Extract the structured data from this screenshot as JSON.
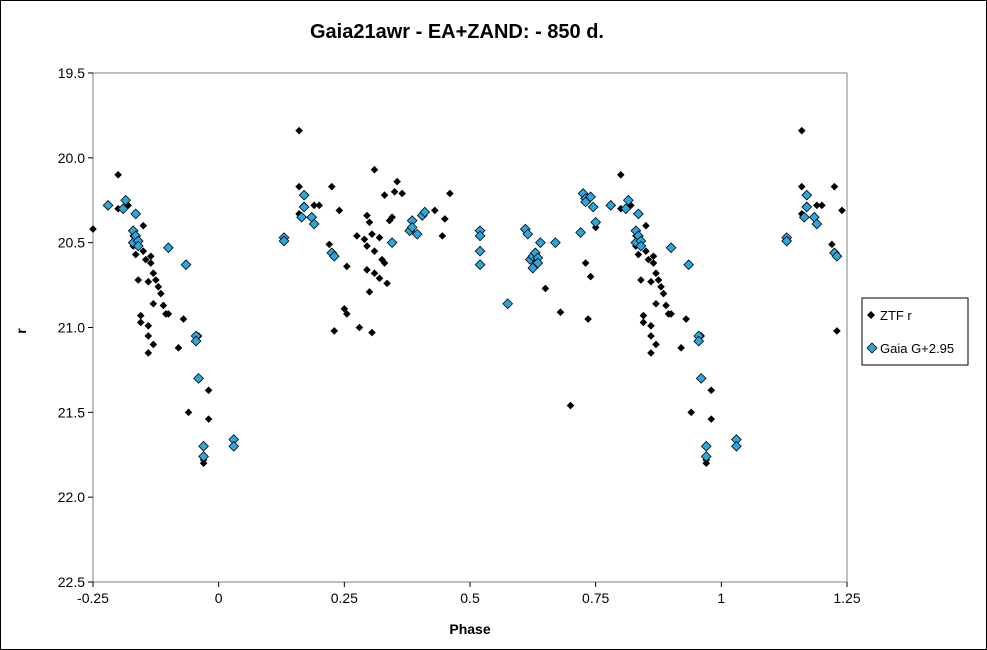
{
  "chart_data": {
    "type": "scatter",
    "title": "Gaia21awr - EA+ZAND:  - 850 d.",
    "xlabel": "Phase",
    "ylabel": "r",
    "xlim": [
      -0.25,
      1.25
    ],
    "ylim": [
      19.5,
      22.5
    ],
    "y_inverted": true,
    "grid": false,
    "legend_position": "right",
    "x_ticks": [
      "-0.25",
      "0",
      "0.25",
      "0.5",
      "0.75",
      "1",
      "1.25"
    ],
    "y_ticks": [
      "19.5",
      "20.0",
      "20.5",
      "21.0",
      "21.5",
      "22.0",
      "22.5"
    ],
    "series": [
      {
        "name": "ZTF r",
        "marker": "diamond",
        "color": "#000000",
        "points": [
          [
            -0.25,
            20.42
          ],
          [
            -0.2,
            20.1
          ],
          [
            -0.2,
            20.3
          ],
          [
            -0.18,
            20.28
          ],
          [
            -0.17,
            20.46
          ],
          [
            -0.17,
            20.52
          ],
          [
            -0.165,
            20.57
          ],
          [
            -0.16,
            20.72
          ],
          [
            -0.155,
            20.93
          ],
          [
            -0.155,
            20.97
          ],
          [
            -0.15,
            20.4
          ],
          [
            -0.15,
            20.55
          ],
          [
            -0.145,
            20.6
          ],
          [
            -0.14,
            20.73
          ],
          [
            -0.14,
            20.99
          ],
          [
            -0.14,
            21.05
          ],
          [
            -0.14,
            21.15
          ],
          [
            -0.135,
            20.58
          ],
          [
            -0.135,
            20.62
          ],
          [
            -0.13,
            20.68
          ],
          [
            -0.13,
            20.86
          ],
          [
            -0.13,
            21.1
          ],
          [
            -0.125,
            20.72
          ],
          [
            -0.12,
            20.76
          ],
          [
            -0.115,
            20.8
          ],
          [
            -0.11,
            20.87
          ],
          [
            -0.105,
            20.92
          ],
          [
            -0.1,
            20.92
          ],
          [
            -0.08,
            21.12
          ],
          [
            -0.07,
            20.95
          ],
          [
            -0.06,
            21.5
          ],
          [
            -0.04,
            21.05
          ],
          [
            -0.03,
            21.78
          ],
          [
            -0.03,
            21.8
          ],
          [
            -0.02,
            21.37
          ],
          [
            -0.02,
            21.54
          ],
          [
            0.16,
            19.84
          ],
          [
            0.16,
            20.17
          ],
          [
            0.16,
            20.33
          ],
          [
            0.17,
            20.28
          ],
          [
            0.19,
            20.28
          ],
          [
            0.2,
            20.28
          ],
          [
            0.22,
            20.51
          ],
          [
            0.225,
            20.17
          ],
          [
            0.23,
            21.02
          ],
          [
            0.24,
            20.31
          ],
          [
            0.25,
            20.89
          ],
          [
            0.255,
            20.92
          ],
          [
            0.255,
            20.64
          ],
          [
            0.275,
            20.46
          ],
          [
            0.28,
            21.0
          ],
          [
            0.29,
            20.48
          ],
          [
            0.295,
            20.34
          ],
          [
            0.295,
            20.52
          ],
          [
            0.295,
            20.66
          ],
          [
            0.3,
            20.38
          ],
          [
            0.3,
            20.79
          ],
          [
            0.305,
            20.45
          ],
          [
            0.305,
            21.03
          ],
          [
            0.31,
            20.07
          ],
          [
            0.31,
            20.55
          ],
          [
            0.31,
            20.68
          ],
          [
            0.32,
            20.47
          ],
          [
            0.32,
            20.71
          ],
          [
            0.325,
            20.6
          ],
          [
            0.33,
            20.22
          ],
          [
            0.33,
            20.62
          ],
          [
            0.335,
            20.74
          ],
          [
            0.34,
            20.37
          ],
          [
            0.345,
            20.35
          ],
          [
            0.35,
            20.2
          ],
          [
            0.355,
            20.14
          ],
          [
            0.365,
            20.21
          ],
          [
            0.43,
            20.31
          ],
          [
            0.445,
            20.46
          ],
          [
            0.45,
            20.36
          ],
          [
            0.46,
            20.21
          ],
          [
            0.65,
            20.77
          ],
          [
            0.68,
            20.91
          ],
          [
            0.7,
            21.46
          ],
          [
            0.72,
            20.44
          ],
          [
            0.73,
            20.62
          ],
          [
            0.735,
            20.95
          ],
          [
            0.74,
            20.7
          ],
          [
            0.75,
            20.41
          ],
          [
            0.8,
            20.1
          ],
          [
            0.8,
            20.3
          ],
          [
            0.82,
            20.28
          ],
          [
            0.83,
            20.46
          ],
          [
            0.83,
            20.52
          ],
          [
            0.835,
            20.57
          ],
          [
            0.84,
            20.72
          ],
          [
            0.845,
            20.93
          ],
          [
            0.845,
            20.97
          ],
          [
            0.85,
            20.4
          ],
          [
            0.85,
            20.55
          ],
          [
            0.855,
            20.6
          ],
          [
            0.86,
            20.73
          ],
          [
            0.86,
            20.99
          ],
          [
            0.86,
            21.05
          ],
          [
            0.86,
            21.15
          ],
          [
            0.865,
            20.58
          ],
          [
            0.865,
            20.62
          ],
          [
            0.87,
            20.68
          ],
          [
            0.87,
            20.86
          ],
          [
            0.87,
            21.1
          ],
          [
            0.875,
            20.72
          ],
          [
            0.88,
            20.76
          ],
          [
            0.885,
            20.8
          ],
          [
            0.89,
            20.87
          ],
          [
            0.895,
            20.92
          ],
          [
            0.9,
            20.92
          ],
          [
            0.92,
            21.12
          ],
          [
            0.93,
            20.95
          ],
          [
            0.94,
            21.5
          ],
          [
            0.96,
            21.05
          ],
          [
            0.97,
            21.78
          ],
          [
            0.97,
            21.8
          ],
          [
            0.98,
            21.37
          ],
          [
            0.98,
            21.54
          ],
          [
            1.16,
            19.84
          ],
          [
            1.16,
            20.17
          ],
          [
            1.16,
            20.33
          ],
          [
            1.17,
            20.28
          ],
          [
            1.19,
            20.28
          ],
          [
            1.2,
            20.28
          ],
          [
            1.22,
            20.51
          ],
          [
            1.225,
            20.17
          ],
          [
            1.23,
            21.02
          ],
          [
            1.24,
            20.31
          ]
        ]
      },
      {
        "name": "Gaia G+2.95",
        "marker": "diamond",
        "color": "#29a8e0",
        "points": [
          [
            -0.22,
            20.28
          ],
          [
            -0.19,
            20.3
          ],
          [
            -0.185,
            20.25
          ],
          [
            -0.17,
            20.43
          ],
          [
            -0.17,
            20.5
          ],
          [
            -0.165,
            20.33
          ],
          [
            -0.165,
            20.46
          ],
          [
            -0.16,
            20.49
          ],
          [
            -0.16,
            20.52
          ],
          [
            -0.1,
            20.53
          ],
          [
            -0.065,
            20.63
          ],
          [
            -0.045,
            21.05
          ],
          [
            -0.045,
            21.08
          ],
          [
            -0.04,
            21.3
          ],
          [
            -0.03,
            21.7
          ],
          [
            -0.03,
            21.76
          ],
          [
            0.03,
            21.66
          ],
          [
            0.03,
            21.7
          ],
          [
            0.13,
            20.47
          ],
          [
            0.13,
            20.49
          ],
          [
            0.165,
            20.35
          ],
          [
            0.17,
            20.22
          ],
          [
            0.17,
            20.29
          ],
          [
            0.185,
            20.35
          ],
          [
            0.19,
            20.39
          ],
          [
            0.225,
            20.56
          ],
          [
            0.23,
            20.58
          ],
          [
            0.345,
            20.5
          ],
          [
            0.38,
            20.43
          ],
          [
            0.385,
            20.37
          ],
          [
            0.385,
            20.41
          ],
          [
            0.395,
            20.45
          ],
          [
            0.405,
            20.34
          ],
          [
            0.41,
            20.32
          ],
          [
            0.52,
            20.43
          ],
          [
            0.52,
            20.46
          ],
          [
            0.52,
            20.55
          ],
          [
            0.52,
            20.63
          ],
          [
            0.575,
            20.86
          ],
          [
            0.61,
            20.42
          ],
          [
            0.615,
            20.45
          ],
          [
            0.62,
            20.6
          ],
          [
            0.625,
            20.58
          ],
          [
            0.625,
            20.65
          ],
          [
            0.63,
            20.56
          ],
          [
            0.635,
            20.59
          ],
          [
            0.635,
            20.62
          ],
          [
            0.64,
            20.5
          ],
          [
            0.67,
            20.5
          ],
          [
            0.72,
            20.44
          ],
          [
            0.725,
            20.21
          ],
          [
            0.73,
            20.24
          ],
          [
            0.73,
            20.26
          ],
          [
            0.74,
            20.23
          ],
          [
            0.745,
            20.29
          ],
          [
            0.75,
            20.38
          ],
          [
            0.78,
            20.28
          ],
          [
            0.81,
            20.3
          ],
          [
            0.815,
            20.25
          ],
          [
            0.83,
            20.43
          ],
          [
            0.83,
            20.5
          ],
          [
            0.835,
            20.33
          ],
          [
            0.835,
            20.46
          ],
          [
            0.84,
            20.49
          ],
          [
            0.84,
            20.52
          ],
          [
            0.9,
            20.53
          ],
          [
            0.935,
            20.63
          ],
          [
            0.955,
            21.05
          ],
          [
            0.955,
            21.08
          ],
          [
            0.96,
            21.3
          ],
          [
            0.97,
            21.7
          ],
          [
            0.97,
            21.76
          ],
          [
            1.03,
            21.66
          ],
          [
            1.03,
            21.7
          ],
          [
            1.13,
            20.47
          ],
          [
            1.13,
            20.49
          ],
          [
            1.165,
            20.35
          ],
          [
            1.17,
            20.22
          ],
          [
            1.17,
            20.29
          ],
          [
            1.185,
            20.35
          ],
          [
            1.19,
            20.39
          ],
          [
            1.225,
            20.56
          ],
          [
            1.23,
            20.58
          ]
        ]
      }
    ]
  }
}
